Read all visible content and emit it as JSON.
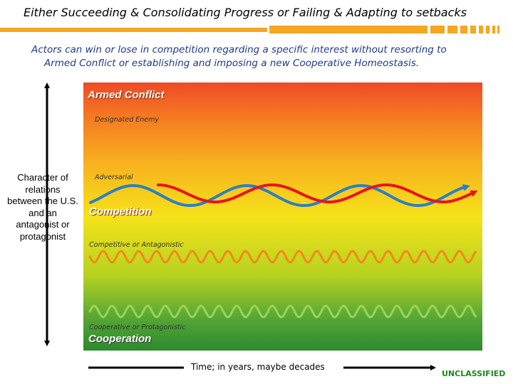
{
  "slide": {
    "title": "Either Succeeding & Consolidating Progress or Failing & Adapting to setbacks",
    "subtitle_line1": "Actors can win or lose in competition regarding a specific interest without resorting to",
    "subtitle_line2": "Armed Conflict or establishing and imposing a new Cooperative Homeostasis.",
    "classification": "UNCLASSIFIED"
  },
  "diagram": {
    "bands": {
      "armed_conflict": "Armed Conflict",
      "competition": "Competition",
      "cooperation": "Cooperation"
    },
    "levels": {
      "designated_enemy": "Designated Enemy",
      "adversarial": "Adversarial",
      "competitive_antagonistic": "Competitive or Antagonistic",
      "cooperative_protagonistic": "Cooperative or Protagonistic"
    },
    "y_axis_label": "Character of relations between the U.S. and an antagonist or protagonist",
    "x_axis_label": "Time; in years, maybe decades",
    "colors": {
      "accent": "#f5a623",
      "red_line": "#e8141c",
      "blue_line": "#2c7fc4",
      "orange_wave": "#f08a1c",
      "green_wave": "#9ad45a"
    }
  }
}
